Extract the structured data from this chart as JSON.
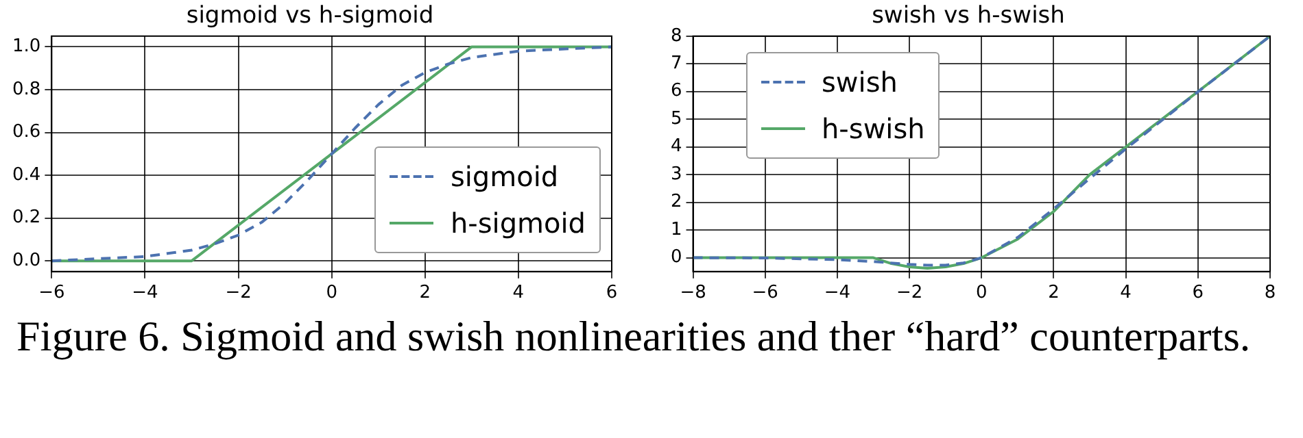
{
  "chart_data": [
    {
      "type": "line",
      "title": "sigmoid vs h-sigmoid",
      "annotations": [
        "Figure 6. Sigmoid and swish nonlinearities and ther “hard” counterparts."
      ],
      "xlim": [
        -6,
        6
      ],
      "xticks": [
        {
          "value": -6,
          "label": "−6"
        },
        {
          "value": -4,
          "label": "−4"
        },
        {
          "value": -2,
          "label": "−2"
        },
        0,
        2,
        4,
        6
      ],
      "ylim": [
        -0.05,
        1.05
      ],
      "yticks": [
        {
          "value": 0,
          "label": "0.0"
        },
        {
          "value": 0.2,
          "label": "0.2"
        },
        {
          "value": 0.4,
          "label": "0.4"
        },
        {
          "value": 0.6,
          "label": "0.6"
        },
        {
          "value": 0.8,
          "label": "0.8"
        },
        {
          "value": 1,
          "label": "1.0"
        }
      ],
      "grid": true,
      "legend": "bottom right",
      "marker": "none",
      "series": [
        {
          "name": "sigmoid",
          "color": "#4c72b0",
          "line_style": "dashed",
          "x": [
            -6,
            -5,
            -4,
            -3,
            -2.5,
            -2,
            -1.5,
            -1,
            -0.5,
            0,
            0.5,
            1,
            1.5,
            2,
            2.5,
            3,
            4,
            5,
            6
          ],
          "values": [
            0,
            0.01,
            0.02,
            0.05,
            0.08,
            0.12,
            0.18,
            0.27,
            0.38,
            0.5,
            0.62,
            0.73,
            0.82,
            0.88,
            0.92,
            0.95,
            0.98,
            0.99,
            1
          ]
        },
        {
          "name": "h-sigmoid",
          "color": "#55a868",
          "line_style": "solid",
          "x": [
            -6,
            -3,
            3,
            6
          ],
          "values": [
            0,
            0,
            1,
            1
          ]
        }
      ]
    },
    {
      "type": "line",
      "title": "swish vs h-swish",
      "xlim": [
        -8,
        8
      ],
      "xticks": [
        {
          "value": -8,
          "label": "−8"
        },
        {
          "value": -6,
          "label": "−6"
        },
        {
          "value": -4,
          "label": "−4"
        },
        {
          "value": -2,
          "label": "−2"
        },
        0,
        2,
        4,
        6,
        8
      ],
      "ylim": [
        -0.5,
        8
      ],
      "yticks": [
        0,
        1,
        2,
        3,
        4,
        5,
        6,
        7,
        8
      ],
      "grid": true,
      "legend": "top left",
      "marker": "none",
      "series": [
        {
          "name": "swish",
          "color": "#4c72b0",
          "line_style": "dashed",
          "x": [
            -8,
            -6,
            -4,
            -3,
            -2,
            -1.5,
            -1,
            -0.5,
            0,
            1,
            2,
            3,
            4,
            6,
            8
          ],
          "values": [
            0,
            -0.01,
            -0.07,
            -0.14,
            -0.24,
            -0.27,
            -0.27,
            -0.19,
            0,
            0.73,
            1.76,
            2.86,
            3.93,
            5.99,
            8
          ]
        },
        {
          "name": "h-swish",
          "color": "#55a868",
          "line_style": "solid",
          "x": [
            -8,
            -3,
            -2.5,
            -2,
            -1.5,
            -1,
            -0.5,
            0,
            1,
            2,
            3,
            8
          ],
          "values": [
            0,
            0,
            -0.21,
            -0.33,
            -0.38,
            -0.33,
            -0.21,
            0,
            0.67,
            1.67,
            3,
            8
          ]
        }
      ]
    }
  ]
}
